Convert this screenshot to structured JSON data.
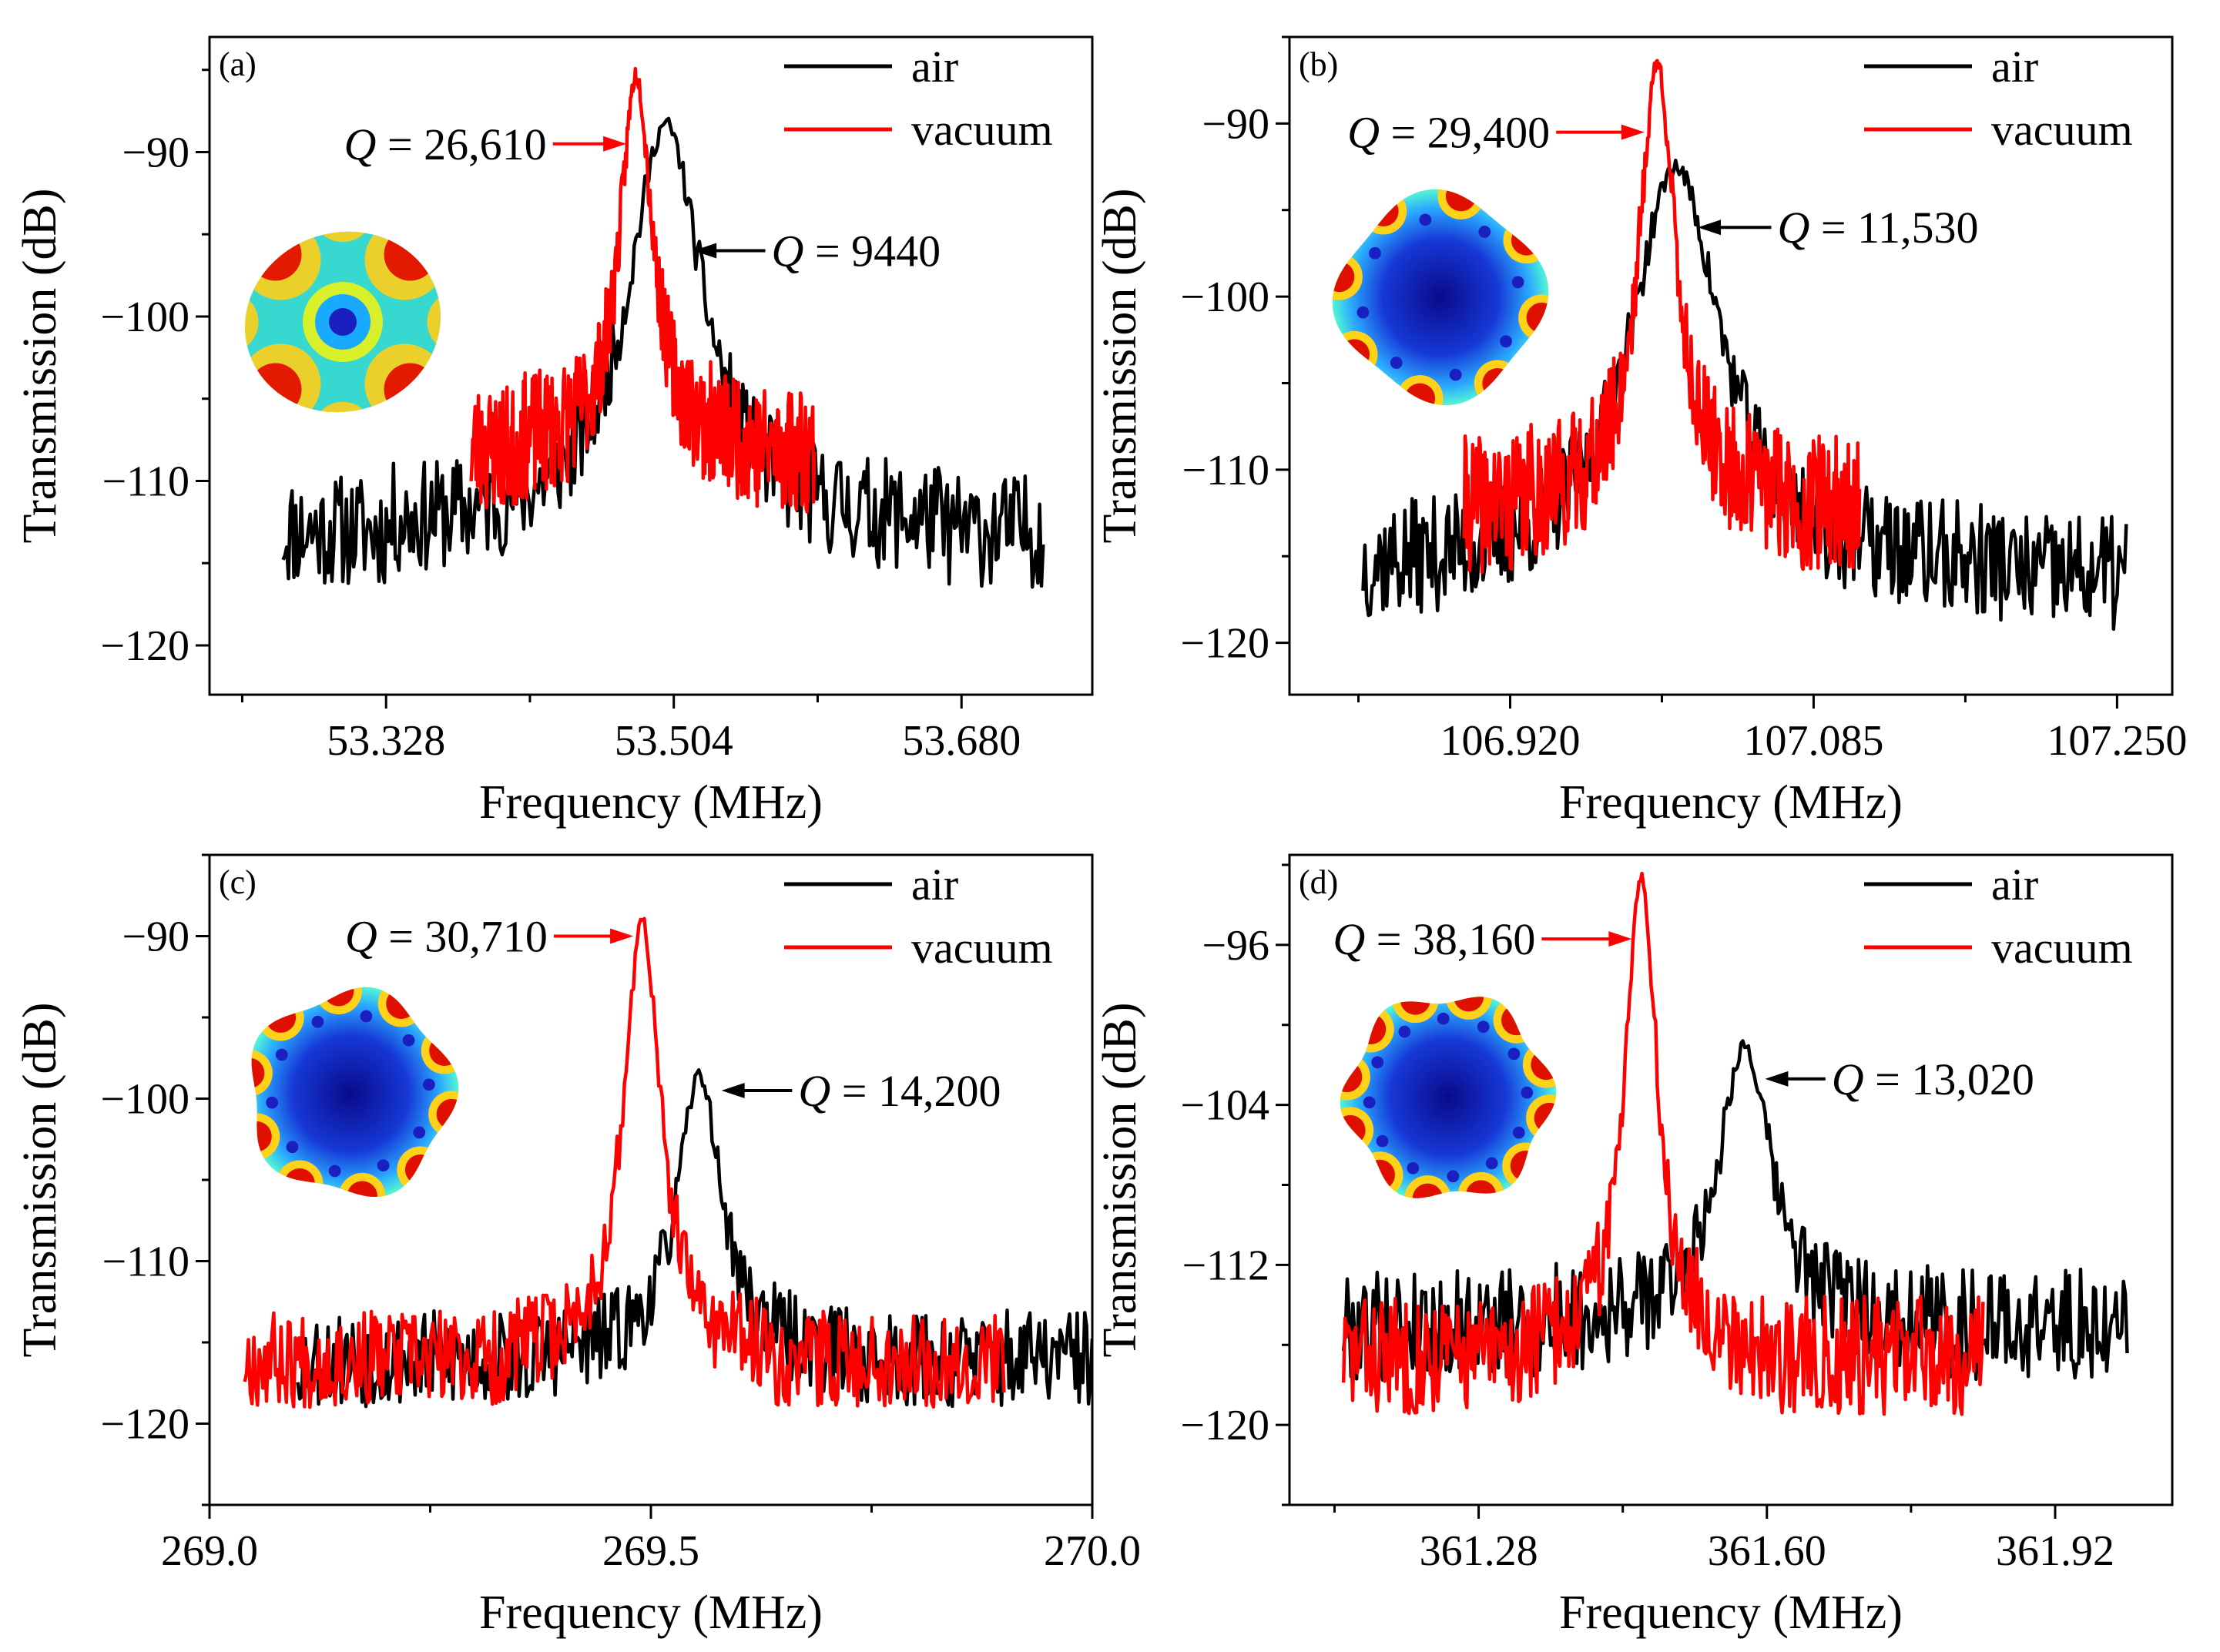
{
  "figure": {
    "background": "#ffffff",
    "colors": {
      "air": "#000000",
      "vacuum": "#ff0000",
      "axis": "#000000"
    }
  },
  "chart_data": [
    {
      "id": "a",
      "type": "line",
      "panel_label": "(a)",
      "xlabel": "Frequency (MHz)",
      "ylabel": "Transmission (dB)",
      "xlim": [
        53.22,
        53.76
      ],
      "ylim": [
        -123.0,
        -83.0
      ],
      "xticks": [
        53.328,
        53.504,
        53.68
      ],
      "xtick_labels": [
        "53.328",
        "53.504",
        "53.680"
      ],
      "yticks": [
        -120,
        -110,
        -100,
        -90
      ],
      "ytick_labels": [
        "−120",
        "−110",
        "−100",
        "−90"
      ],
      "legend": {
        "position": "top-right",
        "entries": [
          "air",
          "vacuum"
        ]
      },
      "series": [
        {
          "name": "air",
          "color": "#000000",
          "x_range": [
            53.265,
            53.73
          ],
          "peak_x": 53.499,
          "peak_y": -88.3,
          "width": 0.028,
          "noise_base": -113.0,
          "noise_amp": 3.5,
          "seed": 11
        },
        {
          "name": "vacuum",
          "color": "#ff0000",
          "x_range": [
            53.38,
            53.59
          ],
          "peak_x": 53.481,
          "peak_y": -85.3,
          "width": 0.012,
          "noise_base": -108.0,
          "noise_amp": 4.0,
          "seed": 23
        }
      ],
      "annotations": [
        {
          "q": "Q",
          "text": " = 26,610",
          "color": "#ff0000",
          "x": 53.43,
          "y": -89.5,
          "arrow_to": [
            53.475,
            -89.5
          ],
          "text_anchor": "end"
        },
        {
          "q": "Q",
          "text": " = 9440",
          "color": "#000000",
          "x": 53.56,
          "y": -96.0,
          "arrow_to": [
            53.516,
            -96.0
          ],
          "text_anchor": "start"
        }
      ],
      "inset": "mode-a"
    },
    {
      "id": "b",
      "type": "line",
      "panel_label": "(b)",
      "xlabel": "Frequency (MHz)",
      "ylabel": "Transmission (dB)",
      "xlim": [
        106.8,
        107.28
      ],
      "ylim": [
        -123.0,
        -85.0
      ],
      "xticks": [
        106.92,
        107.085,
        107.25
      ],
      "xtick_labels": [
        "106.920",
        "107.085",
        "107.250"
      ],
      "yticks": [
        -120,
        -110,
        -100,
        -90
      ],
      "ytick_labels": [
        "−120",
        "−110",
        "−100",
        "−90"
      ],
      "legend": {
        "position": "top-right",
        "entries": [
          "air",
          "vacuum"
        ]
      },
      "series": [
        {
          "name": "air",
          "color": "#000000",
          "x_range": [
            106.84,
            107.255
          ],
          "peak_x": 107.01,
          "peak_y": -92.5,
          "width": 0.03,
          "noise_base": -116.0,
          "noise_amp": 3.5,
          "seed": 37
        },
        {
          "name": "vacuum",
          "color": "#ff0000",
          "x_range": [
            106.895,
            107.11
          ],
          "peak_x": 107.0,
          "peak_y": -86.5,
          "width": 0.012,
          "noise_base": -112.0,
          "noise_amp": 4.0,
          "seed": 41
        }
      ],
      "annotations": [
        {
          "q": "Q",
          "text": " = 29,400",
          "color": "#ff0000",
          "x": 106.945,
          "y": -90.5,
          "arrow_to": [
            106.993,
            -90.5
          ],
          "text_anchor": "end"
        },
        {
          "q": "Q",
          "text": " = 11,530",
          "color": "#000000",
          "x": 107.062,
          "y": -96.0,
          "arrow_to": [
            107.022,
            -96.0
          ],
          "text_anchor": "start"
        }
      ],
      "inset": "mode-b"
    },
    {
      "id": "c",
      "type": "line",
      "panel_label": "(c)",
      "xlabel": "Frequency (MHz)",
      "ylabel": "Transmission (dB)",
      "xlim": [
        269.0,
        270.0
      ],
      "ylim": [
        -125.0,
        -85.0
      ],
      "xticks": [
        269.0,
        269.5,
        270.0
      ],
      "xtick_labels": [
        "269.0",
        "269.5",
        "270.0"
      ],
      "yticks": [
        -120,
        -110,
        -100,
        -90
      ],
      "ytick_labels": [
        "−120",
        "−110",
        "−100",
        "−90"
      ],
      "legend": {
        "position": "top-right",
        "entries": [
          "air",
          "vacuum"
        ]
      },
      "series": [
        {
          "name": "air",
          "color": "#000000",
          "x_range": [
            269.1,
            270.0
          ],
          "peak_x": 269.555,
          "peak_y": -98.5,
          "width": 0.03,
          "noise_base": -116.0,
          "noise_amp": 3.0,
          "seed": 53
        },
        {
          "name": "vacuum",
          "color": "#ff0000",
          "x_range": [
            269.04,
            269.9
          ],
          "peak_x": 269.49,
          "peak_y": -89.0,
          "width": 0.025,
          "noise_base": -116.0,
          "noise_amp": 3.0,
          "seed": 67
        }
      ],
      "annotations": [
        {
          "q": "Q",
          "text": " = 30,710",
          "color": "#ff0000",
          "x": 269.39,
          "y": -90.0,
          "arrow_to": [
            269.48,
            -90.0
          ],
          "text_anchor": "end"
        },
        {
          "q": "Q",
          "text": " = 14,200",
          "color": "#000000",
          "x": 269.66,
          "y": -99.5,
          "arrow_to": [
            269.58,
            -99.5
          ],
          "text_anchor": "start"
        }
      ],
      "inset": "mode-c"
    },
    {
      "id": "d",
      "type": "line",
      "panel_label": "(d)",
      "xlabel": "Frequency (MHz)",
      "ylabel": "Transmission (dB)",
      "xlim": [
        361.07,
        362.05
      ],
      "ylim": [
        -124.0,
        -91.5
      ],
      "xticks": [
        361.28,
        361.6,
        361.92
      ],
      "xtick_labels": [
        "361.28",
        "361.60",
        "361.92"
      ],
      "yticks": [
        -120,
        -112,
        -104,
        -96
      ],
      "ytick_labels": [
        "−120",
        "−112",
        "−104",
        "−96"
      ],
      "legend": {
        "position": "top-right",
        "entries": [
          "air",
          "vacuum"
        ]
      },
      "series": [
        {
          "name": "air",
          "color": "#000000",
          "x_range": [
            361.13,
            362.0
          ],
          "peak_x": 361.575,
          "peak_y": -101.0,
          "width": 0.035,
          "noise_base": -115.0,
          "noise_amp": 2.8,
          "seed": 79
        },
        {
          "name": "vacuum",
          "color": "#ff0000",
          "x_range": [
            361.13,
            361.84
          ],
          "peak_x": 361.46,
          "peak_y": -92.5,
          "width": 0.022,
          "noise_base": -116.5,
          "noise_amp": 3.0,
          "seed": 83
        }
      ],
      "annotations": [
        {
          "q": "Q",
          "text": " = 38,160",
          "color": "#ff0000",
          "x": 361.35,
          "y": -95.7,
          "arrow_to": [
            361.45,
            -95.7
          ],
          "text_anchor": "end"
        },
        {
          "q": "Q",
          "text": " = 13,020",
          "color": "#000000",
          "x": 361.665,
          "y": -102.7,
          "arrow_to": [
            361.598,
            -102.7
          ],
          "text_anchor": "start"
        }
      ],
      "inset": "mode-d"
    }
  ]
}
